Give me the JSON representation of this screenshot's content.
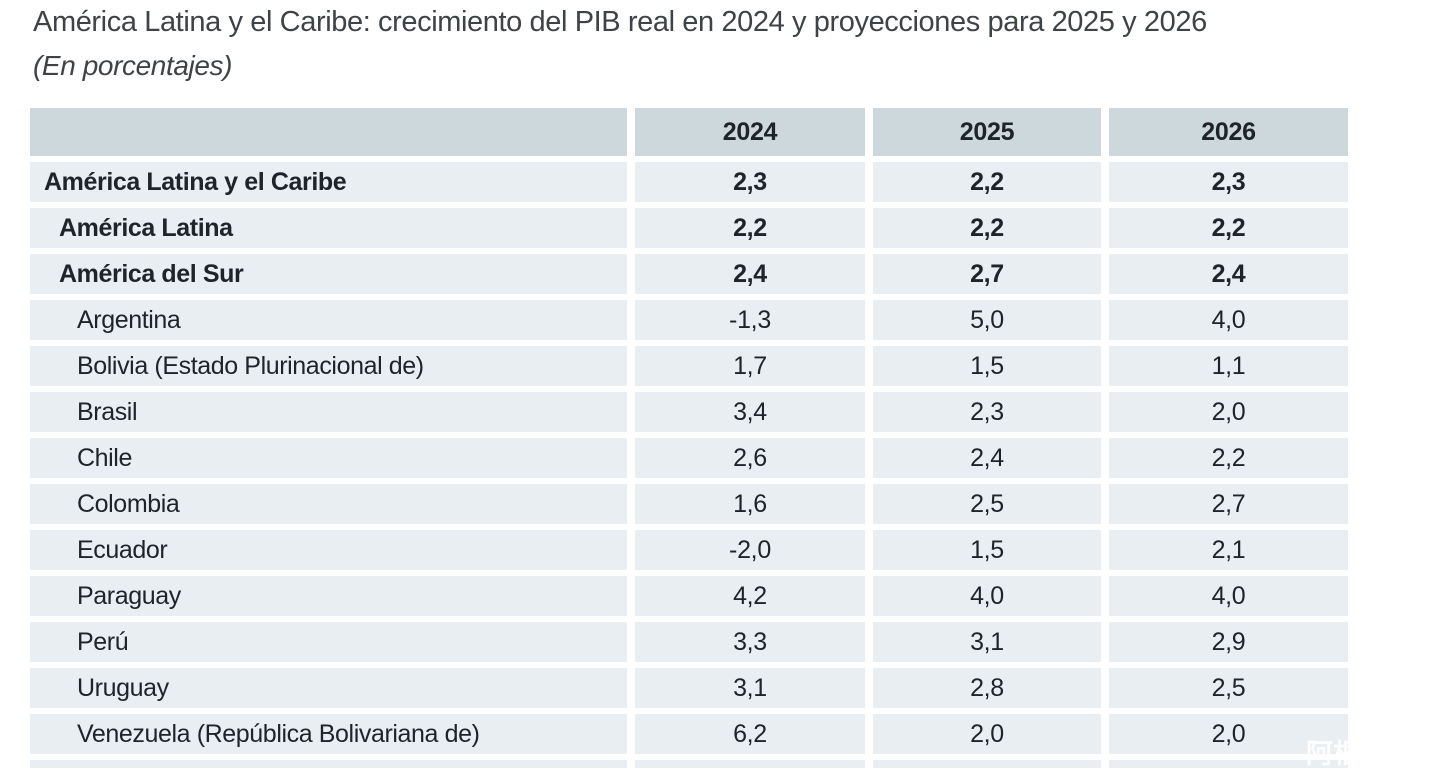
{
  "page": {
    "title": "América Latina y el Caribe: crecimiento del PIB real en 2024 y proyecciones para 2025 y 2026",
    "subtitle": "(En porcentajes)"
  },
  "table": {
    "columns": [
      "",
      "2024",
      "2025",
      "2026"
    ],
    "rows": [
      {
        "label": "América Latina y el Caribe",
        "values": [
          "2,3",
          "2,2",
          "2,3"
        ],
        "bold": true,
        "indent": 1
      },
      {
        "label": "América Latina",
        "values": [
          "2,2",
          "2,2",
          "2,2"
        ],
        "bold": true,
        "indent": 2
      },
      {
        "label": "América del Sur",
        "values": [
          "2,4",
          "2,7",
          "2,4"
        ],
        "bold": true,
        "indent": 2
      },
      {
        "label": "Argentina",
        "values": [
          "-1,3",
          "5,0",
          "4,0"
        ],
        "bold": false,
        "indent": 3
      },
      {
        "label": "Bolivia (Estado Plurinacional de)",
        "values": [
          "1,7",
          "1,5",
          "1,1"
        ],
        "bold": false,
        "indent": 3
      },
      {
        "label": "Brasil",
        "values": [
          "3,4",
          "2,3",
          "2,0"
        ],
        "bold": false,
        "indent": 3
      },
      {
        "label": "Chile",
        "values": [
          "2,6",
          "2,4",
          "2,2"
        ],
        "bold": false,
        "indent": 3
      },
      {
        "label": "Colombia",
        "values": [
          "1,6",
          "2,5",
          "2,7"
        ],
        "bold": false,
        "indent": 3
      },
      {
        "label": "Ecuador",
        "values": [
          "-2,0",
          "1,5",
          "2,1"
        ],
        "bold": false,
        "indent": 3
      },
      {
        "label": "Paraguay",
        "values": [
          "4,2",
          "4,0",
          "4,0"
        ],
        "bold": false,
        "indent": 3
      },
      {
        "label": "Perú",
        "values": [
          "3,3",
          "3,1",
          "2,9"
        ],
        "bold": false,
        "indent": 3
      },
      {
        "label": "Uruguay",
        "values": [
          "3,1",
          "2,8",
          "2,5"
        ],
        "bold": false,
        "indent": 3
      },
      {
        "label": "Venezuela (República Bolivariana de)",
        "values": [
          "6,2",
          "2,0",
          "2,0"
        ],
        "bold": false,
        "indent": 3
      }
    ]
  },
  "chart_data": {
    "type": "table",
    "title": "América Latina y el Caribe: crecimiento del PIB real en 2024 y proyecciones para 2025 y 2026",
    "subtitle": "(En porcentajes)",
    "categories": [
      "2024",
      "2025",
      "2026"
    ],
    "series": [
      {
        "name": "América Latina y el Caribe",
        "values": [
          2.3,
          2.2,
          2.3
        ]
      },
      {
        "name": "América Latina",
        "values": [
          2.2,
          2.2,
          2.2
        ]
      },
      {
        "name": "América del Sur",
        "values": [
          2.4,
          2.7,
          2.4
        ]
      },
      {
        "name": "Argentina",
        "values": [
          -1.3,
          5.0,
          4.0
        ]
      },
      {
        "name": "Bolivia (Estado Plurinacional de)",
        "values": [
          1.7,
          1.5,
          1.1
        ]
      },
      {
        "name": "Brasil",
        "values": [
          3.4,
          2.3,
          2.0
        ]
      },
      {
        "name": "Chile",
        "values": [
          2.6,
          2.4,
          2.2
        ]
      },
      {
        "name": "Colombia",
        "values": [
          1.6,
          2.5,
          2.7
        ]
      },
      {
        "name": "Ecuador",
        "values": [
          -2.0,
          1.5,
          2.1
        ]
      },
      {
        "name": "Paraguay",
        "values": [
          4.2,
          4.0,
          4.0
        ]
      },
      {
        "name": "Perú",
        "values": [
          3.3,
          3.1,
          2.9
        ]
      },
      {
        "name": "Uruguay",
        "values": [
          3.1,
          2.8,
          2.5
        ]
      },
      {
        "name": "Venezuela (República Bolivariana de)",
        "values": [
          6.2,
          2.0,
          2.0
        ]
      }
    ]
  },
  "watermark": "阿根",
  "colors": {
    "header_bg": "#ccd8dc",
    "row_bg": "#e8eef2",
    "page_bg": "#ffffff",
    "text": "#20242a",
    "title_text": "#3e4347"
  }
}
